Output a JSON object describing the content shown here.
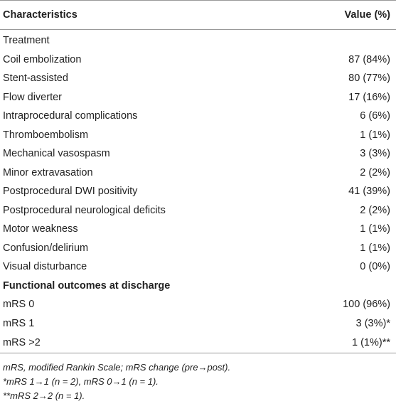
{
  "table": {
    "header": [
      "Characteristics",
      "Value (%)"
    ],
    "rows": [
      [
        "Treatment"
      ],
      [
        "Coil embolization",
        "87 (84%)"
      ],
      [
        "Stent-assisted",
        "80 (77%)"
      ],
      [
        "Flow diverter",
        "17 (16%)"
      ],
      [
        "Intraprocedural complications",
        "6 (6%)"
      ],
      [
        "Thromboembolism",
        "1 (1%)"
      ],
      [
        "Mechanical vasospasm",
        "3 (3%)"
      ],
      [
        "Minor extravasation",
        "2 (2%)"
      ],
      [
        "Postprocedural DWI positivity",
        "41 (39%)"
      ],
      [
        "Postprocedural neurological deficits",
        "2 (2%)"
      ],
      [
        "Motor weakness",
        "1 (1%)"
      ],
      [
        "Confusion/delirium",
        "1 (1%)"
      ],
      [
        "Visual disturbance",
        "0 (0%)"
      ],
      [
        "Functional outcomes at discharge"
      ],
      [
        "mRS 0",
        "100 (96%)"
      ],
      [
        "mRS 1",
        "3 (3%)*"
      ],
      [
        "mRS >2",
        "1 (1%)**"
      ]
    ],
    "footnotes": [
      "mRS, modified Rankin Scale; mRS change (pre→post).",
      "*mRS 1→1 (n = 2), mRS 0→1 (n = 1).",
      "**mRS 2→2 (n = 1)."
    ]
  }
}
